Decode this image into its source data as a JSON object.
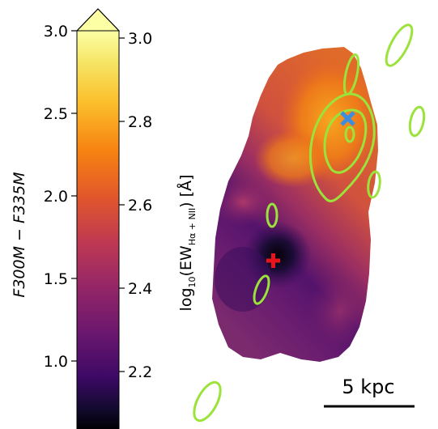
{
  "figure": {
    "colorbar": {
      "left_axis_label": "F300M − F335M",
      "left_ticks": [
        "3.0",
        "2.5",
        "2.0",
        "1.5",
        "1.0"
      ],
      "right_ticks": [
        "3.0",
        "2.8",
        "2.6",
        "2.4",
        "2.2"
      ],
      "right_axis_label_prefix": "log",
      "right_axis_label_log_base": "10",
      "right_axis_label_open": "(EW",
      "right_axis_label_sub": "Hα + NII",
      "right_axis_label_close": ") [Å]",
      "colormap": "inferno",
      "extend": "max"
    },
    "map": {
      "scale_bar_label": "5 kpc",
      "contour_color": "#9be33a",
      "blue_marker": "x-cross",
      "blue_marker_color": "#3b8de0",
      "red_marker": "plus",
      "red_marker_color": "#e8141c"
    }
  }
}
